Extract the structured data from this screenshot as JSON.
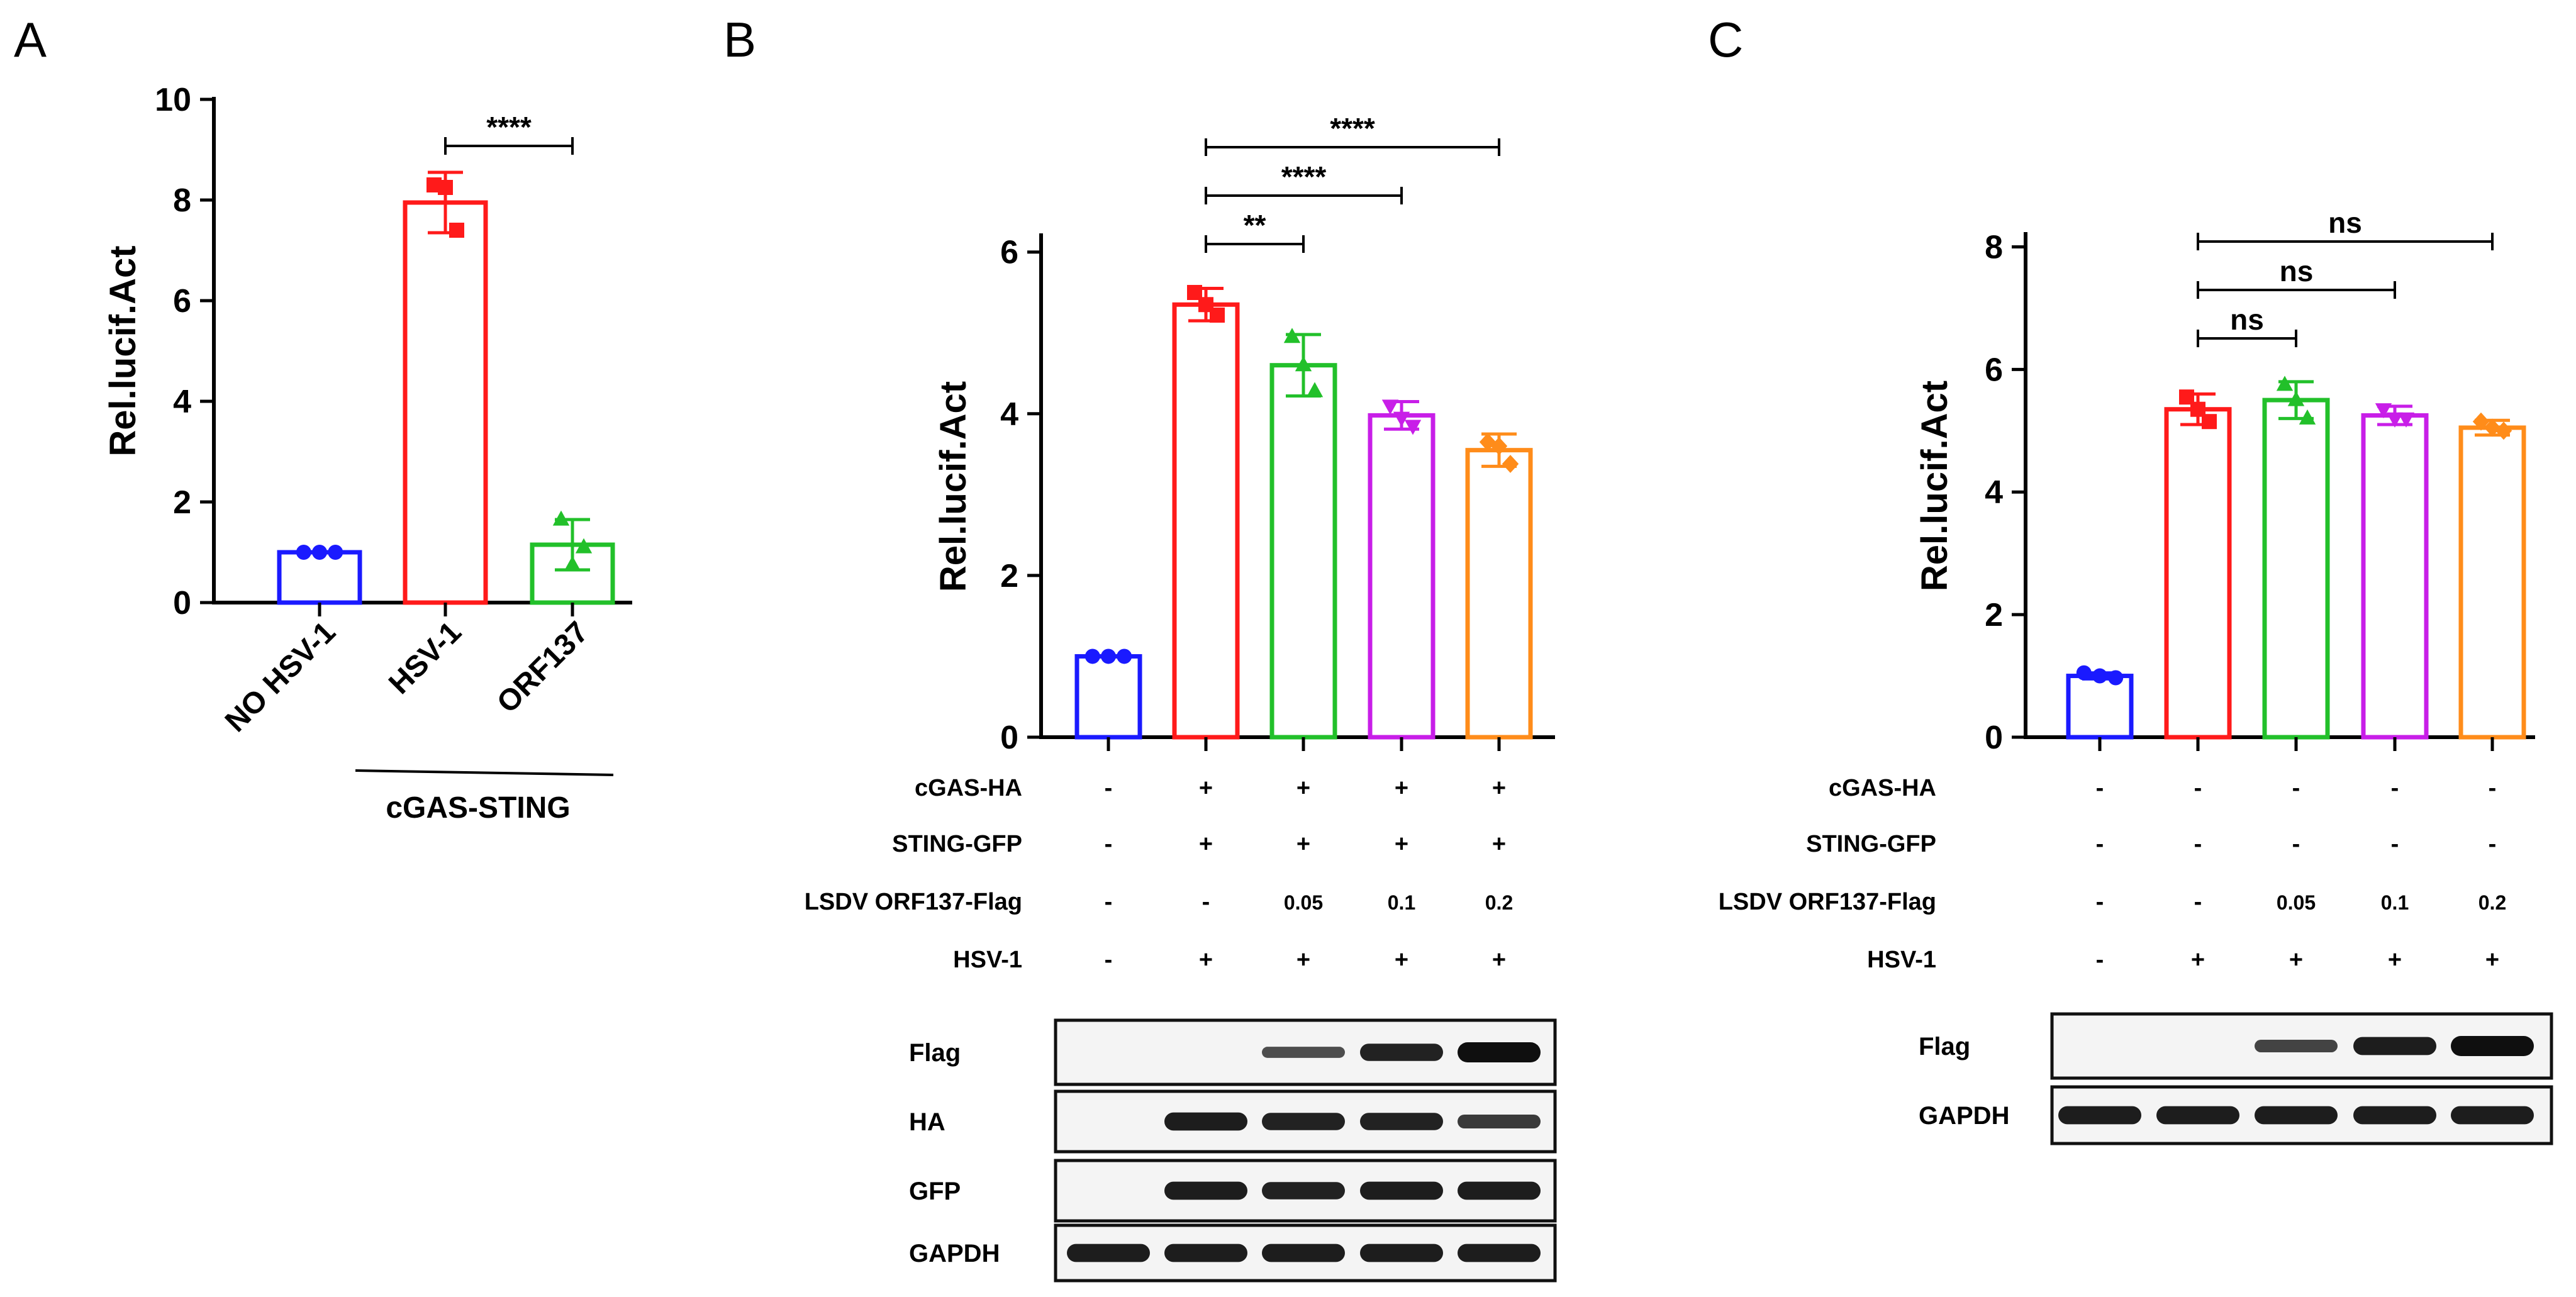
{
  "chart_data": [
    {
      "panel": "A",
      "type": "bar",
      "ylabel": "Rel.lucif.Act",
      "ylim": [
        0,
        10
      ],
      "yticks": [
        0,
        2,
        4,
        6,
        8,
        10
      ],
      "categories": [
        "NO HSV-1",
        "HSV-1",
        "ORF137"
      ],
      "group_label": "cGAS-STING",
      "colors": [
        "#1a1aff",
        "#ff1a1a",
        "#22c02a"
      ],
      "markers": [
        "circle",
        "square",
        "triangle"
      ],
      "values": [
        1.0,
        7.95,
        1.15
      ],
      "errors": [
        0.03,
        0.6,
        0.5
      ],
      "points": [
        [
          1.0,
          1.0,
          1.0
        ],
        [
          8.3,
          8.25,
          7.4
        ],
        [
          1.65,
          0.75,
          1.1
        ]
      ],
      "significance": [
        {
          "from": 1,
          "to": 2,
          "label": "****"
        }
      ]
    },
    {
      "panel": "B",
      "type": "bar",
      "ylabel": "Rel.lucif.Act",
      "ylim": [
        0,
        6.2
      ],
      "yticks": [
        0,
        2,
        4,
        6
      ],
      "colors": [
        "#1a1aff",
        "#ff1a1a",
        "#22c02a",
        "#c81ee8",
        "#ff8c1a"
      ],
      "markers": [
        "circle",
        "square",
        "triangle",
        "triangle-down",
        "diamond"
      ],
      "values": [
        1.0,
        5.35,
        4.6,
        3.98,
        3.55
      ],
      "errors": [
        0.03,
        0.2,
        0.38,
        0.17,
        0.2
      ],
      "points": [
        [
          1.0,
          1.0,
          1.0
        ],
        [
          5.5,
          5.35,
          5.22
        ],
        [
          4.95,
          4.6,
          4.28
        ],
        [
          4.1,
          3.95,
          3.85
        ],
        [
          3.65,
          3.6,
          3.38
        ]
      ],
      "significance": [
        {
          "from": 1,
          "to": 2,
          "label": "**"
        },
        {
          "from": 1,
          "to": 3,
          "label": "****"
        },
        {
          "from": 1,
          "to": 4,
          "label": "****"
        }
      ],
      "conditions": [
        {
          "label": "cGAS-HA",
          "values": [
            "-",
            "+",
            "+",
            "+",
            "+"
          ]
        },
        {
          "label": "STING-GFP",
          "values": [
            "-",
            "+",
            "+",
            "+",
            "+"
          ]
        },
        {
          "label": "LSDV ORF137-Flag",
          "values": [
            "-",
            "-",
            "0.05",
            "0.1",
            "0.2"
          ]
        },
        {
          "label": "HSV-1",
          "values": [
            "-",
            "+",
            "+",
            "+",
            "+"
          ]
        }
      ],
      "blots": [
        {
          "label": "Flag",
          "intensity": [
            0,
            0,
            0.35,
            0.8,
            1.0
          ]
        },
        {
          "label": "HA",
          "intensity": [
            0,
            0.85,
            0.8,
            0.8,
            0.55
          ]
        },
        {
          "label": "GFP",
          "intensity": [
            0,
            0.85,
            0.8,
            0.85,
            0.85
          ]
        },
        {
          "label": "GAPDH",
          "intensity": [
            0.85,
            0.85,
            0.85,
            0.85,
            0.85
          ]
        }
      ]
    },
    {
      "panel": "C",
      "type": "bar",
      "ylabel": "Rel.lucif.Act",
      "ylim": [
        0,
        8.2
      ],
      "yticks": [
        0,
        2,
        4,
        6,
        8
      ],
      "colors": [
        "#1a1aff",
        "#ff1a1a",
        "#22c02a",
        "#c81ee8",
        "#ff8c1a"
      ],
      "markers": [
        "circle",
        "square",
        "triangle",
        "triangle-down",
        "diamond"
      ],
      "values": [
        1.0,
        5.35,
        5.5,
        5.25,
        5.05
      ],
      "errors": [
        0.05,
        0.25,
        0.3,
        0.15,
        0.12
      ],
      "points": [
        [
          1.05,
          1.0,
          0.97
        ],
        [
          5.55,
          5.35,
          5.15
        ],
        [
          5.75,
          5.5,
          5.2
        ],
        [
          5.35,
          5.2,
          5.2
        ],
        [
          5.15,
          5.05,
          5.0
        ]
      ],
      "significance": [
        {
          "from": 1,
          "to": 2,
          "label": "ns"
        },
        {
          "from": 1,
          "to": 3,
          "label": "ns"
        },
        {
          "from": 1,
          "to": 4,
          "label": "ns"
        }
      ],
      "conditions": [
        {
          "label": "cGAS-HA",
          "values": [
            "-",
            "-",
            "-",
            "-",
            "-"
          ]
        },
        {
          "label": "STING-GFP",
          "values": [
            "-",
            "-",
            "-",
            "-",
            "-"
          ]
        },
        {
          "label": "LSDV ORF137-Flag",
          "values": [
            "-",
            "-",
            "0.05",
            "0.1",
            "0.2"
          ]
        },
        {
          "label": "HSV-1",
          "values": [
            "-",
            "+",
            "+",
            "+",
            "+"
          ]
        }
      ],
      "blots": [
        {
          "label": "Flag",
          "intensity": [
            0,
            0,
            0.45,
            0.85,
            1.0
          ]
        },
        {
          "label": "GAPDH",
          "intensity": [
            0.85,
            0.85,
            0.85,
            0.85,
            0.85
          ]
        }
      ]
    }
  ],
  "panel_letters": [
    "A",
    "B",
    "C"
  ]
}
